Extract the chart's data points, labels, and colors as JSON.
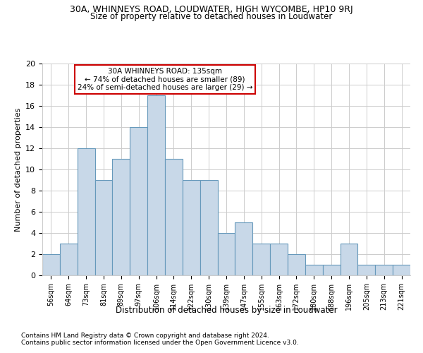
{
  "title1": "30A, WHINNEYS ROAD, LOUDWATER, HIGH WYCOMBE, HP10 9RJ",
  "title2": "Size of property relative to detached houses in Loudwater",
  "xlabel": "Distribution of detached houses by size in Loudwater",
  "ylabel": "Number of detached properties",
  "categories": [
    "56sqm",
    "64sqm",
    "73sqm",
    "81sqm",
    "89sqm",
    "97sqm",
    "106sqm",
    "114sqm",
    "122sqm",
    "130sqm",
    "139sqm",
    "147sqm",
    "155sqm",
    "163sqm",
    "172sqm",
    "180sqm",
    "188sqm",
    "196sqm",
    "205sqm",
    "213sqm",
    "221sqm"
  ],
  "values": [
    2,
    3,
    12,
    9,
    11,
    14,
    17,
    11,
    9,
    9,
    4,
    5,
    3,
    3,
    2,
    1,
    1,
    3,
    1,
    1,
    1
  ],
  "bar_color": "#c8d8e8",
  "bar_edge_color": "#6699bb",
  "annotation_text": "30A WHINNEYS ROAD: 135sqm\n← 74% of detached houses are smaller (89)\n24% of semi-detached houses are larger (29) →",
  "annotation_box_color": "#ffffff",
  "annotation_border_color": "#cc0000",
  "ylim": [
    0,
    20
  ],
  "yticks": [
    0,
    2,
    4,
    6,
    8,
    10,
    12,
    14,
    16,
    18,
    20
  ],
  "footnote1": "Contains HM Land Registry data © Crown copyright and database right 2024.",
  "footnote2": "Contains public sector information licensed under the Open Government Licence v3.0.",
  "background_color": "#ffffff",
  "grid_color": "#cccccc"
}
